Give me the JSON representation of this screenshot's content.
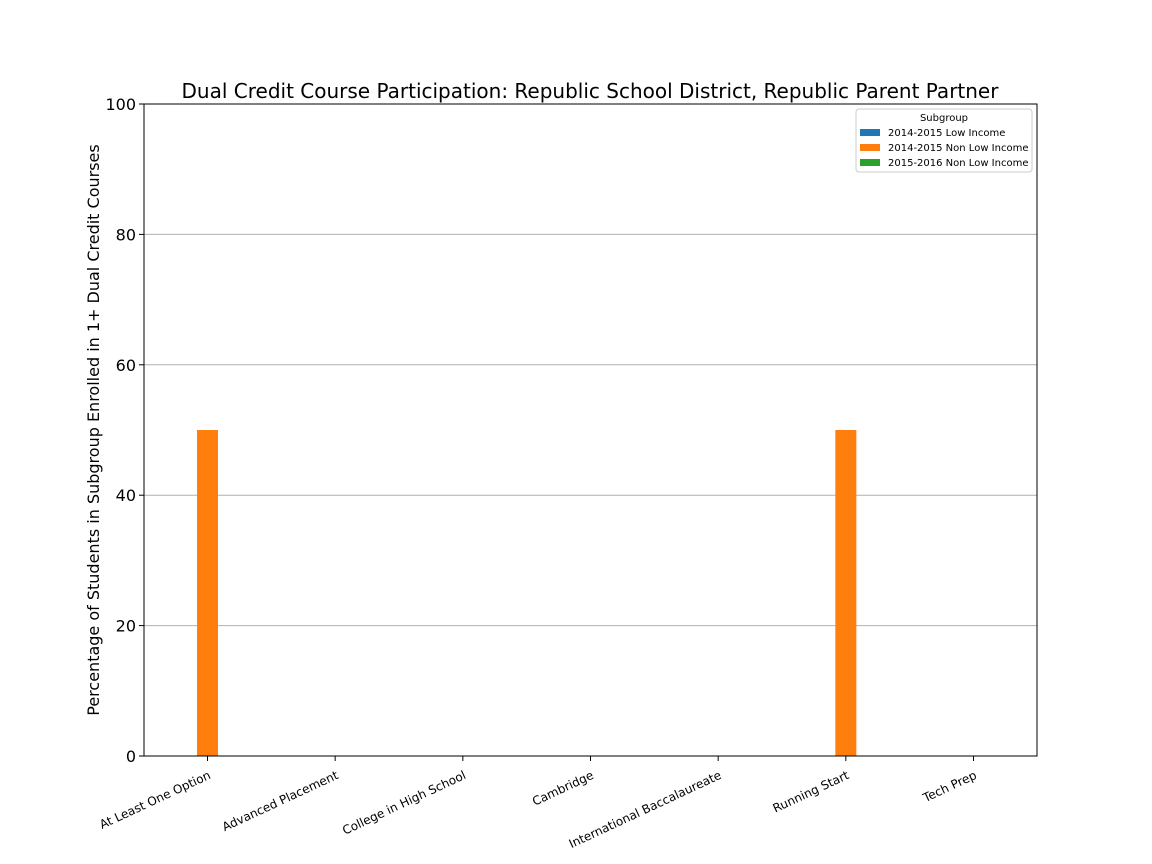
{
  "chart_data": {
    "type": "bar",
    "title": "Dual Credit Course Participation: Republic School District, Republic Parent Partner",
    "xlabel": "",
    "ylabel": "Percentage of Students in Subgroup Enrolled in 1+ Dual Credit Courses",
    "ylim": [
      0,
      100
    ],
    "yticks": [
      0,
      20,
      40,
      60,
      80,
      100
    ],
    "grid": "horizontal",
    "legend_title": "Subgroup",
    "legend_position": "top-right",
    "categories": [
      "At Least One Option",
      "Advanced Placement",
      "College in High School",
      "Cambridge",
      "International Baccalaureate",
      "Running Start",
      "Tech Prep"
    ],
    "series": [
      {
        "name": "2014-2015 Low Income",
        "color": "#1f77b4",
        "values": [
          0,
          0,
          0,
          0,
          0,
          0,
          0
        ]
      },
      {
        "name": "2014-2015 Non Low Income",
        "color": "#ff7f0e",
        "values": [
          50,
          0,
          0,
          0,
          0,
          50,
          0
        ]
      },
      {
        "name": "2015-2016 Non Low Income",
        "color": "#2ca02c",
        "values": [
          0,
          0,
          0,
          0,
          0,
          0,
          0
        ]
      }
    ]
  }
}
